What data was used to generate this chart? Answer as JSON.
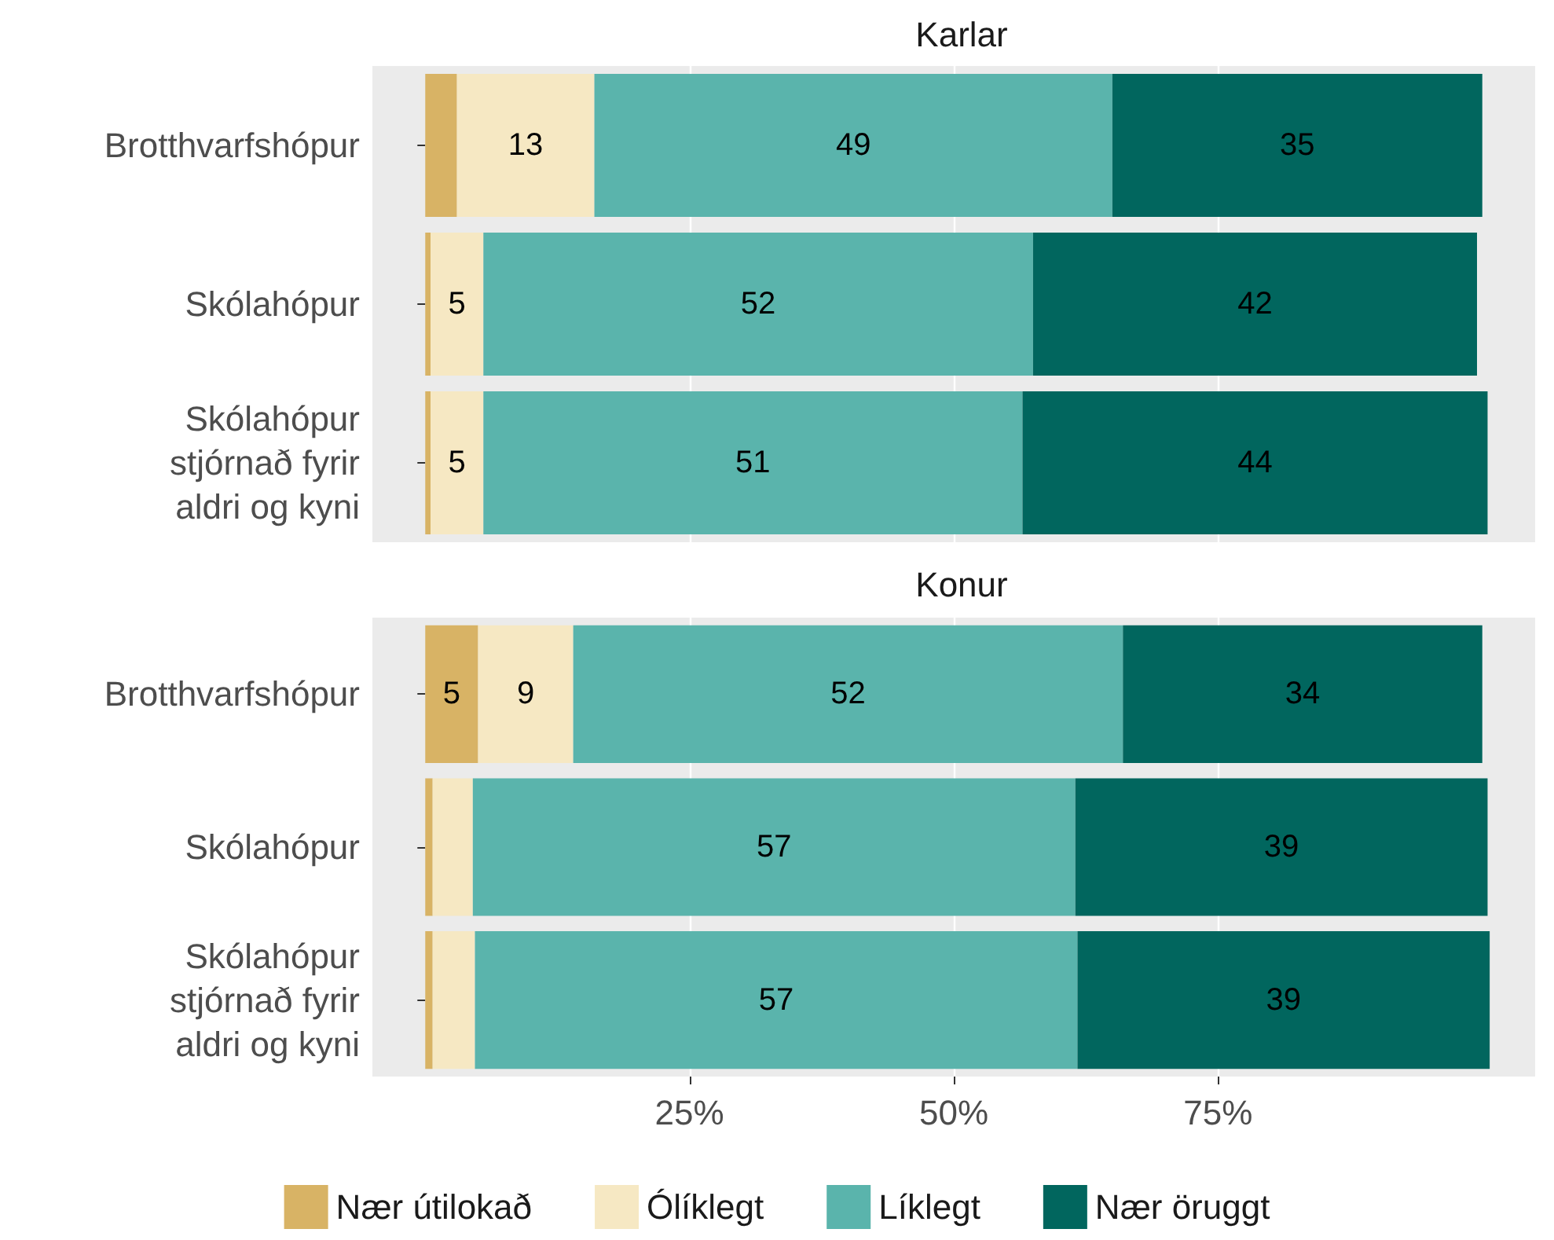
{
  "chart_data": [
    {
      "type": "bar",
      "orientation": "horizontal",
      "stacked": true,
      "title": "Karlar",
      "categories": [
        "Brotthvarfshópur",
        "Skólahópur",
        "Skólahópur\nstjórnað fyrir\naldri og kyni"
      ],
      "series": [
        {
          "color": "#d8b365",
          "values": [
            3,
            0.5,
            0.5
          ],
          "value_labels": [
            null,
            null,
            null
          ]
        },
        {
          "color": "#f6e8c3",
          "values": [
            13,
            5,
            5
          ],
          "value_labels": [
            "13",
            "5",
            "5"
          ]
        },
        {
          "color": "#5ab4ac",
          "values": [
            49,
            52,
            51
          ],
          "value_labels": [
            "49",
            "52",
            "51"
          ]
        },
        {
          "color": "#01665e",
          "values": [
            35,
            42,
            44
          ],
          "value_labels": [
            "35",
            "42",
            "44"
          ]
        }
      ],
      "xlim": [
        -5,
        105
      ],
      "xticks": [
        25,
        50,
        75
      ],
      "grid": "x",
      "tick_labels": "y"
    },
    {
      "type": "bar",
      "orientation": "horizontal",
      "stacked": true,
      "title": "Konur",
      "categories": [
        "Brotthvarfshópur",
        "Skólahópur",
        "Skólahópur\nstjórnað fyrir\naldri og kyni"
      ],
      "series": [
        {
          "name": "Nær útilokað",
          "color": "#d8b365",
          "values": [
            5,
            0.7,
            0.7
          ],
          "value_labels": [
            "5",
            null,
            null
          ]
        },
        {
          "name": "Ólíklegt",
          "color": "#f6e8c3",
          "values": [
            9,
            3.8,
            4
          ],
          "value_labels": [
            "9",
            null,
            null
          ]
        },
        {
          "name": "Líklegt",
          "color": "#5ab4ac",
          "values": [
            52,
            57,
            57
          ],
          "value_labels": [
            "52",
            "57",
            "57"
          ]
        },
        {
          "name": "Nær öruggt",
          "color": "#01665e",
          "values": [
            34,
            39,
            39
          ],
          "value_labels": [
            "34",
            "39",
            "39"
          ]
        }
      ],
      "xlim": [
        -5,
        105
      ],
      "xticks": [
        {
          "value": 25,
          "label": "25%"
        },
        {
          "value": 50,
          "label": "50%"
        },
        {
          "value": 75,
          "label": "75%"
        }
      ],
      "grid": "x",
      "legend": "bottom"
    }
  ]
}
